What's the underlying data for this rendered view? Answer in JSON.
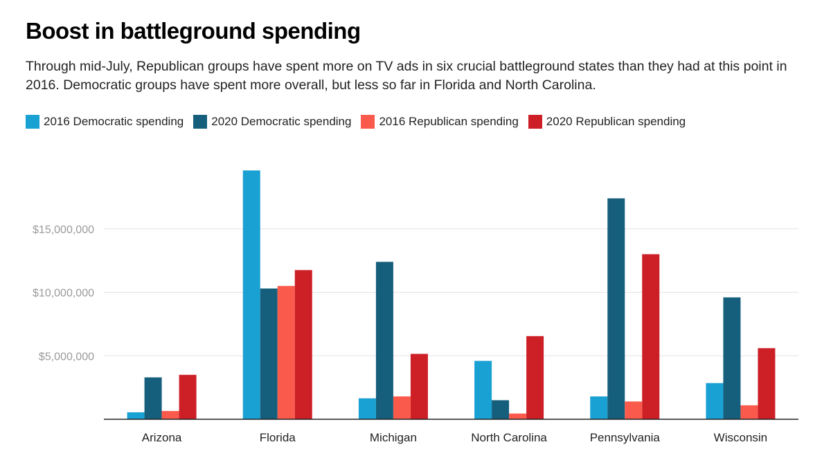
{
  "chart_data": {
    "type": "bar",
    "title": "Boost in battleground spending",
    "subtitle": "Through mid-July, Republican groups have spent more on TV ads in six crucial battleground states than they had at this point in 2016. Democratic groups have spent more overall, but less so far in Florida and North Carolina.",
    "categories": [
      "Arizona",
      "Florida",
      "Michigan",
      "North Carolina",
      "Pennsylvania",
      "Wisconsin"
    ],
    "series": [
      {
        "name": "2016 Democratic spending",
        "color": "#1aa1d4",
        "values": [
          550000,
          19600000,
          1650000,
          4600000,
          1800000,
          2850000
        ]
      },
      {
        "name": "2020 Democratic spending",
        "color": "#155f7c",
        "values": [
          3300000,
          10300000,
          12400000,
          1500000,
          17400000,
          9600000
        ]
      },
      {
        "name": "2016 Republican spending",
        "color": "#fa5a4b",
        "values": [
          650000,
          10500000,
          1800000,
          450000,
          1400000,
          1100000
        ]
      },
      {
        "name": "2020 Republican spending",
        "color": "#cc1f26",
        "values": [
          3500000,
          11750000,
          5150000,
          6550000,
          13000000,
          5600000
        ]
      }
    ],
    "y_ticks": [
      5000000,
      10000000,
      15000000
    ],
    "y_tick_labels": [
      "$5,000,000",
      "$10,000,000",
      "$15,000,000"
    ],
    "ylim": [
      0,
      20500000
    ],
    "xlabel": "",
    "ylabel": "",
    "grid": true,
    "legend_position": "top-left"
  }
}
